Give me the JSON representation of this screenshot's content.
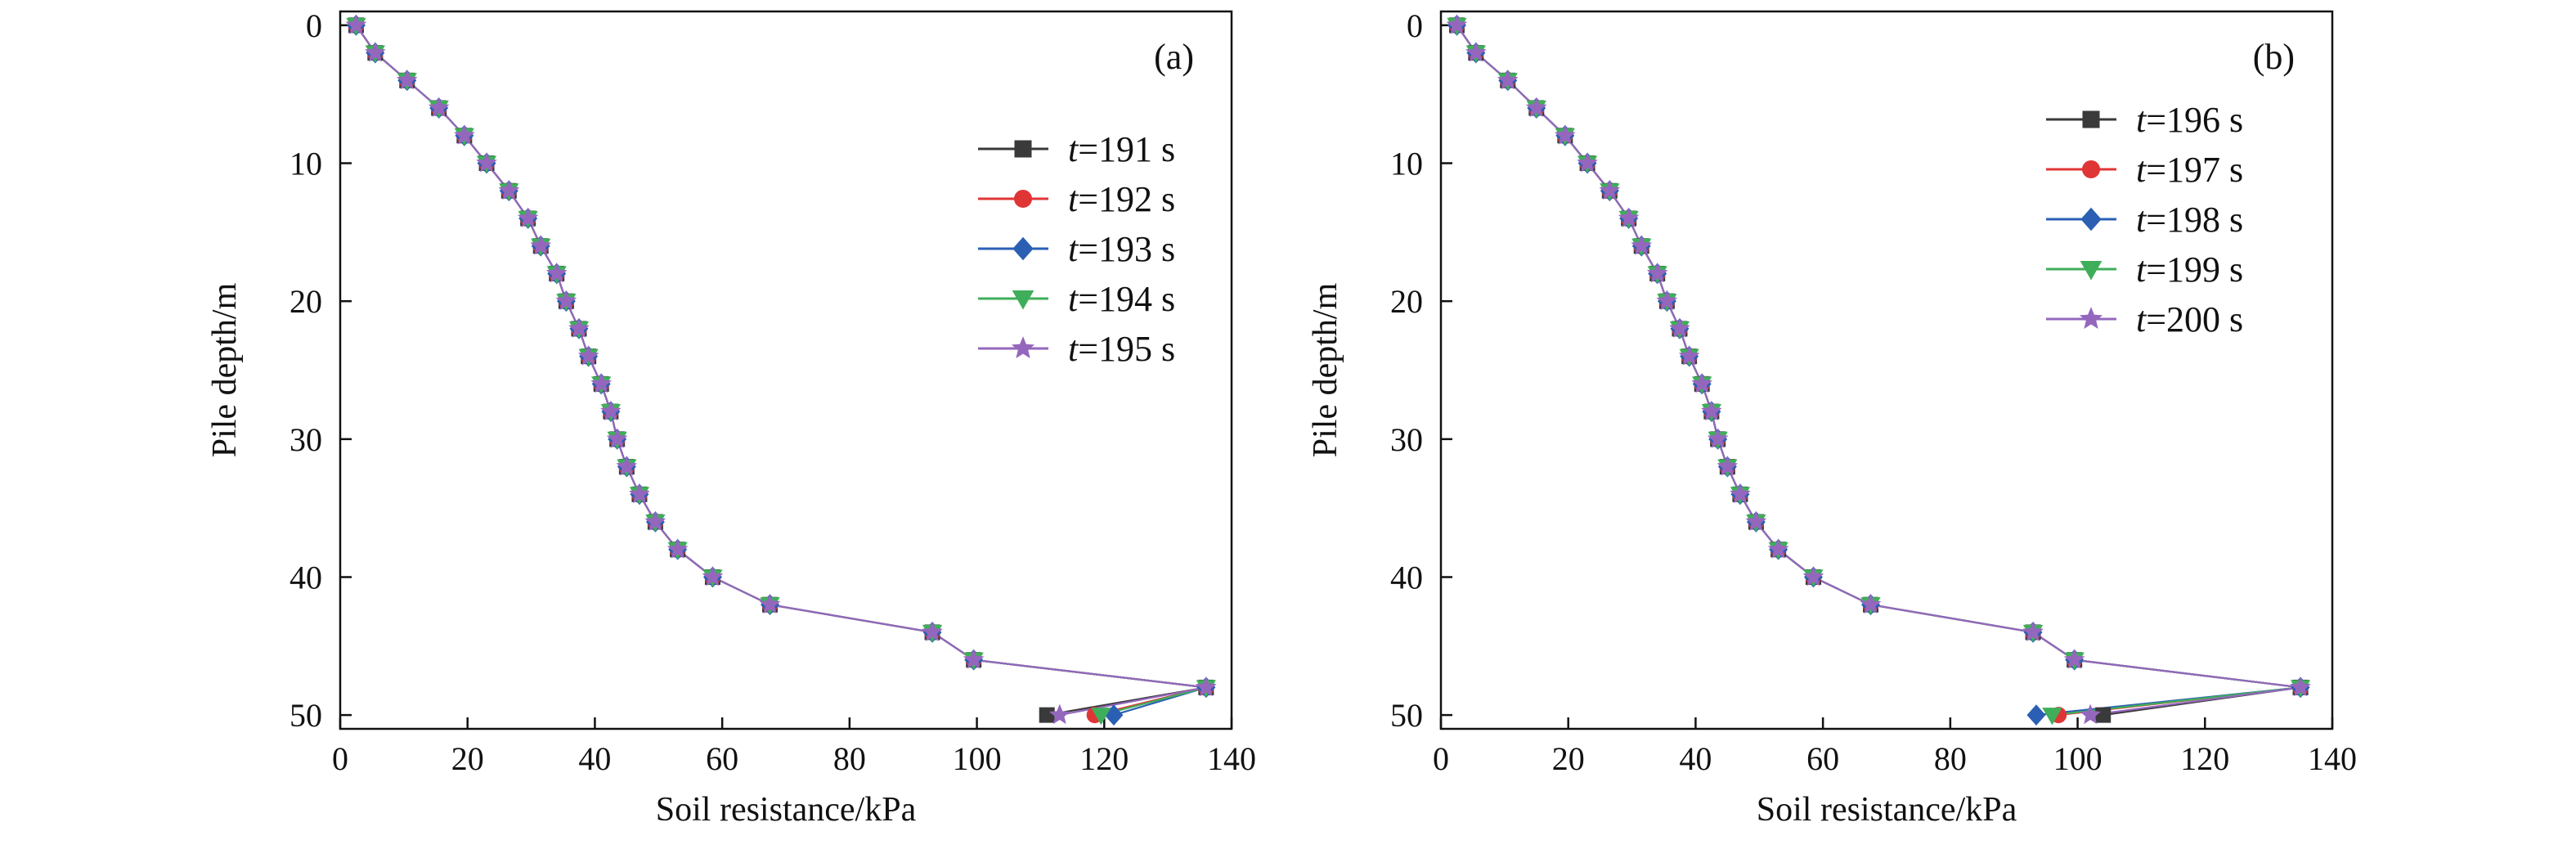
{
  "chart_data": [
    {
      "type": "line",
      "panel_label": "(a)",
      "xlabel": "Soil resistance/kPa",
      "ylabel": "Pile depth/m",
      "xlim": [
        0,
        140
      ],
      "ylim": [
        51,
        -1
      ],
      "y_inverted": true,
      "xticks": [
        0,
        20,
        40,
        60,
        80,
        100,
        120,
        140
      ],
      "yticks": [
        0,
        10,
        20,
        30,
        40,
        50
      ],
      "legend_position": "right, upper-middle",
      "grid": false,
      "depth": [
        0,
        2,
        4,
        6,
        8,
        10,
        12,
        14,
        16,
        18,
        20,
        22,
        24,
        26,
        28,
        30,
        32,
        34,
        36,
        38,
        40,
        42,
        44,
        46,
        48,
        50
      ],
      "shared_profile_0_to_48m": [
        2.5,
        5.5,
        10.5,
        15.5,
        19.5,
        23,
        26.5,
        29.5,
        31.5,
        34,
        35.5,
        37.5,
        39,
        41,
        42.5,
        43.5,
        45,
        47,
        49.5,
        53,
        58.5,
        67.5,
        93,
        99.5,
        136
      ],
      "series": [
        {
          "name": "t=191 s",
          "italic": "t",
          "rest": "=191 s",
          "color": "#3a3a3a",
          "marker": "square",
          "values_tail": [
            111
          ]
        },
        {
          "name": "t=192 s",
          "italic": "t",
          "rest": "=192 s",
          "color": "#e03535",
          "marker": "circle",
          "values_tail": [
            118.5
          ]
        },
        {
          "name": "t=193 s",
          "italic": "t",
          "rest": "=193 s",
          "color": "#2b5fb4",
          "marker": "diamond",
          "values_tail": [
            121.5
          ]
        },
        {
          "name": "t=194 s",
          "italic": "t",
          "rest": "=194 s",
          "color": "#3fae5a",
          "marker": "triangle-down",
          "values_tail": [
            119.5
          ]
        },
        {
          "name": "t=195 s",
          "italic": "t",
          "rest": "=195 s",
          "color": "#9467bd",
          "marker": "star",
          "values_tail": [
            113
          ]
        }
      ]
    },
    {
      "type": "line",
      "panel_label": "(b)",
      "xlabel": "Soil resistance/kPa",
      "ylabel": "Pile depth/m",
      "xlim": [
        0,
        140
      ],
      "ylim": [
        51,
        -1
      ],
      "y_inverted": true,
      "xticks": [
        0,
        20,
        40,
        60,
        80,
        100,
        120,
        140
      ],
      "yticks": [
        0,
        10,
        20,
        30,
        40,
        50
      ],
      "legend_position": "top-right",
      "grid": false,
      "depth": [
        0,
        2,
        4,
        6,
        8,
        10,
        12,
        14,
        16,
        18,
        20,
        22,
        24,
        26,
        28,
        30,
        32,
        34,
        36,
        38,
        40,
        42,
        44,
        46,
        48,
        50
      ],
      "shared_profile_0_to_48m": [
        2.5,
        5.5,
        10.5,
        15,
        19.5,
        23,
        26.5,
        29.5,
        31.5,
        34,
        35.5,
        37.5,
        39,
        41,
        42.5,
        43.5,
        45,
        47,
        49.5,
        53,
        58.5,
        67.5,
        93,
        99.5,
        135
      ],
      "series": [
        {
          "name": "t=196 s",
          "italic": "t",
          "rest": "=196 s",
          "color": "#3a3a3a",
          "marker": "square",
          "values_tail": [
            104
          ]
        },
        {
          "name": "t=197 s",
          "italic": "t",
          "rest": "=197 s",
          "color": "#e03535",
          "marker": "circle",
          "values_tail": [
            97
          ]
        },
        {
          "name": "t=198 s",
          "italic": "t",
          "rest": "=198 s",
          "color": "#2b5fb4",
          "marker": "diamond",
          "values_tail": [
            93.5
          ]
        },
        {
          "name": "t=199 s",
          "italic": "t",
          "rest": "=199 s",
          "color": "#3fae5a",
          "marker": "triangle-down",
          "values_tail": [
            96
          ]
        },
        {
          "name": "t=200 s",
          "italic": "t",
          "rest": "=200 s",
          "color": "#9467bd",
          "marker": "star",
          "values_tail": [
            102
          ]
        }
      ]
    }
  ]
}
